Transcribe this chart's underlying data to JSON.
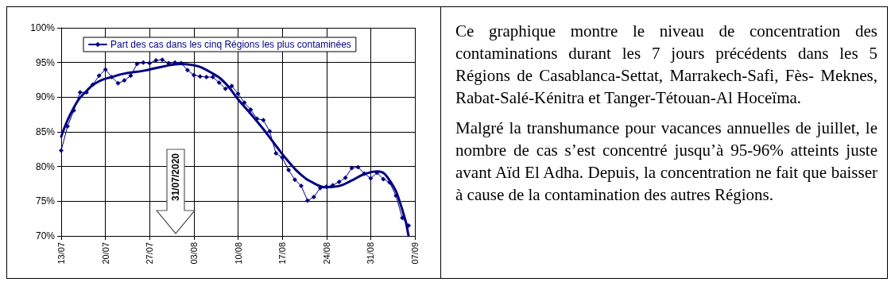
{
  "chart_data": [
    {
      "type": "line",
      "xlim": [
        "--07-13",
        "--09-07"
      ],
      "ylim": [
        70,
        100
      ],
      "xticks": [
        {
          "value": "--07-13",
          "label": "13/07"
        },
        {
          "value": "--07-20",
          "label": "20/07"
        },
        {
          "value": "--07-27",
          "label": "27/07"
        },
        {
          "value": "--08-03",
          "label": "03/08"
        },
        {
          "value": "--08-10",
          "label": "10/08"
        },
        {
          "value": "--08-17",
          "label": "17/08"
        },
        {
          "value": "--08-24",
          "label": "24/08"
        },
        {
          "value": "--08-31",
          "label": "31/08"
        },
        {
          "value": "--09-07",
          "label": "07/09"
        }
      ],
      "yticks": [
        {
          "value": 70,
          "label": "70%"
        },
        {
          "value": 75,
          "label": "75%"
        },
        {
          "value": 80,
          "label": "80%"
        },
        {
          "value": 85,
          "label": "85%"
        },
        {
          "value": 90,
          "label": "90%"
        },
        {
          "value": 95,
          "label": "95%"
        },
        {
          "value": 100,
          "label": "100%"
        }
      ],
      "grid": true,
      "legend": "top",
      "line_style": "solid",
      "annotations": [
        "31/07/2020"
      ],
      "series": [
        {
          "name": "Part des cas dans les cinq Régions les plus contaminées",
          "color": "#000080",
          "marker": "diamond",
          "x": [
            "--07-13",
            "--07-14",
            "--07-15",
            "--07-16",
            "--07-17",
            "--07-18",
            "--07-19",
            "--07-20",
            "--07-21",
            "--07-22",
            "--07-23",
            "--07-24",
            "--07-25",
            "--07-26",
            "--07-27",
            "--07-28",
            "--07-29",
            "--07-30",
            "--07-31",
            "--08-01",
            "--08-02",
            "--08-03",
            "--08-04",
            "--08-05",
            "--08-06",
            "--08-07",
            "--08-08",
            "--08-09",
            "--08-10",
            "--08-11",
            "--08-12",
            "--08-13",
            "--08-14",
            "--08-15",
            "--08-16",
            "--08-17",
            "--08-18",
            "--08-19",
            "--08-20",
            "--08-21",
            "--08-22",
            "--08-23",
            "--08-24",
            "--08-25",
            "--08-26",
            "--08-27",
            "--08-28",
            "--08-29",
            "--08-30",
            "--08-31",
            "--09-01",
            "--09-02",
            "--09-03",
            "--09-04",
            "--09-05",
            "--09-06"
          ],
          "values": [
            82.3,
            85.8,
            88.1,
            90.7,
            90.7,
            91.8,
            93.1,
            94.0,
            92.9,
            92.0,
            92.4,
            93.1,
            94.8,
            95.0,
            94.9,
            95.3,
            95.4,
            94.9,
            95.0,
            94.9,
            93.9,
            93.2,
            93.0,
            92.9,
            92.9,
            92.1,
            91.2,
            91.6,
            90.5,
            89.2,
            88.2,
            86.9,
            86.7,
            85.1,
            81.9,
            81.3,
            79.5,
            78.1,
            77.2,
            75.1,
            75.6,
            76.9,
            77.1,
            77.3,
            77.8,
            78.4,
            79.8,
            79.9,
            79.0,
            78.3,
            79.1,
            78.2,
            77.7,
            75.8,
            72.6,
            71.5
          ]
        },
        {
          "type": "line",
          "color": "#000080",
          "marker": "none",
          "x": [
            "--07-13",
            "--07-15",
            "--07-17",
            "--07-19",
            "--07-21",
            "--07-23",
            "--07-26",
            "--07-29",
            "--08-01",
            "--08-03",
            "--08-06",
            "--08-08",
            "--08-10",
            "--08-12",
            "--08-14",
            "--08-16",
            "--08-18",
            "--08-20",
            "--08-22",
            "--08-24",
            "--08-26",
            "--08-28",
            "--08-30",
            "--09-01",
            "--09-03",
            "--09-05",
            "--09-06"
          ],
          "values": [
            84.3,
            88.5,
            90.9,
            92.3,
            92.9,
            93.4,
            93.8,
            94.4,
            94.8,
            94.6,
            93.4,
            92.0,
            89.7,
            87.6,
            85.4,
            83.0,
            80.7,
            78.8,
            77.6,
            77.0,
            77.2,
            78.0,
            78.9,
            79.3,
            78.0,
            73.8,
            70.0
          ]
        }
      ]
    },
    {
      "type": "other",
      "annotations": [
        "Ce graphique montre le niveau de concentration des contaminations durant les 7 jours précédents dans les 5 Régions de Casablanca-Settat, Marrakech-Safi, Fès- Meknes, Rabat-Salé-Kénitra et Tanger-Tétouan-Al Hoceïma.",
        "Malgré la transhumance pour vacances annuelles de juillet, le nombre de cas s’est concentré jusqu’à 95-96% atteints juste avant Aïd El Adha. Depuis, la concentration ne fait que baisser à cause de la contamination des autres Régions."
      ]
    }
  ]
}
